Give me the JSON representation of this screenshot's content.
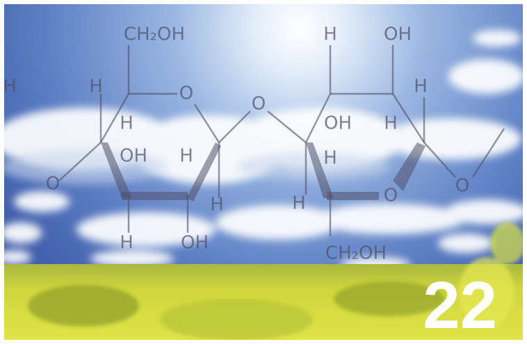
{
  "structure": {
    "labels": [
      "CH₂OH",
      "H",
      "H",
      "O",
      "O",
      "H",
      "OH",
      "H",
      "H",
      "OH",
      "H",
      "OH",
      "H",
      "H",
      "O",
      "H",
      "H",
      "O",
      "O",
      "H",
      "OH",
      "CH₂OH"
    ]
  },
  "page_number": "22"
}
